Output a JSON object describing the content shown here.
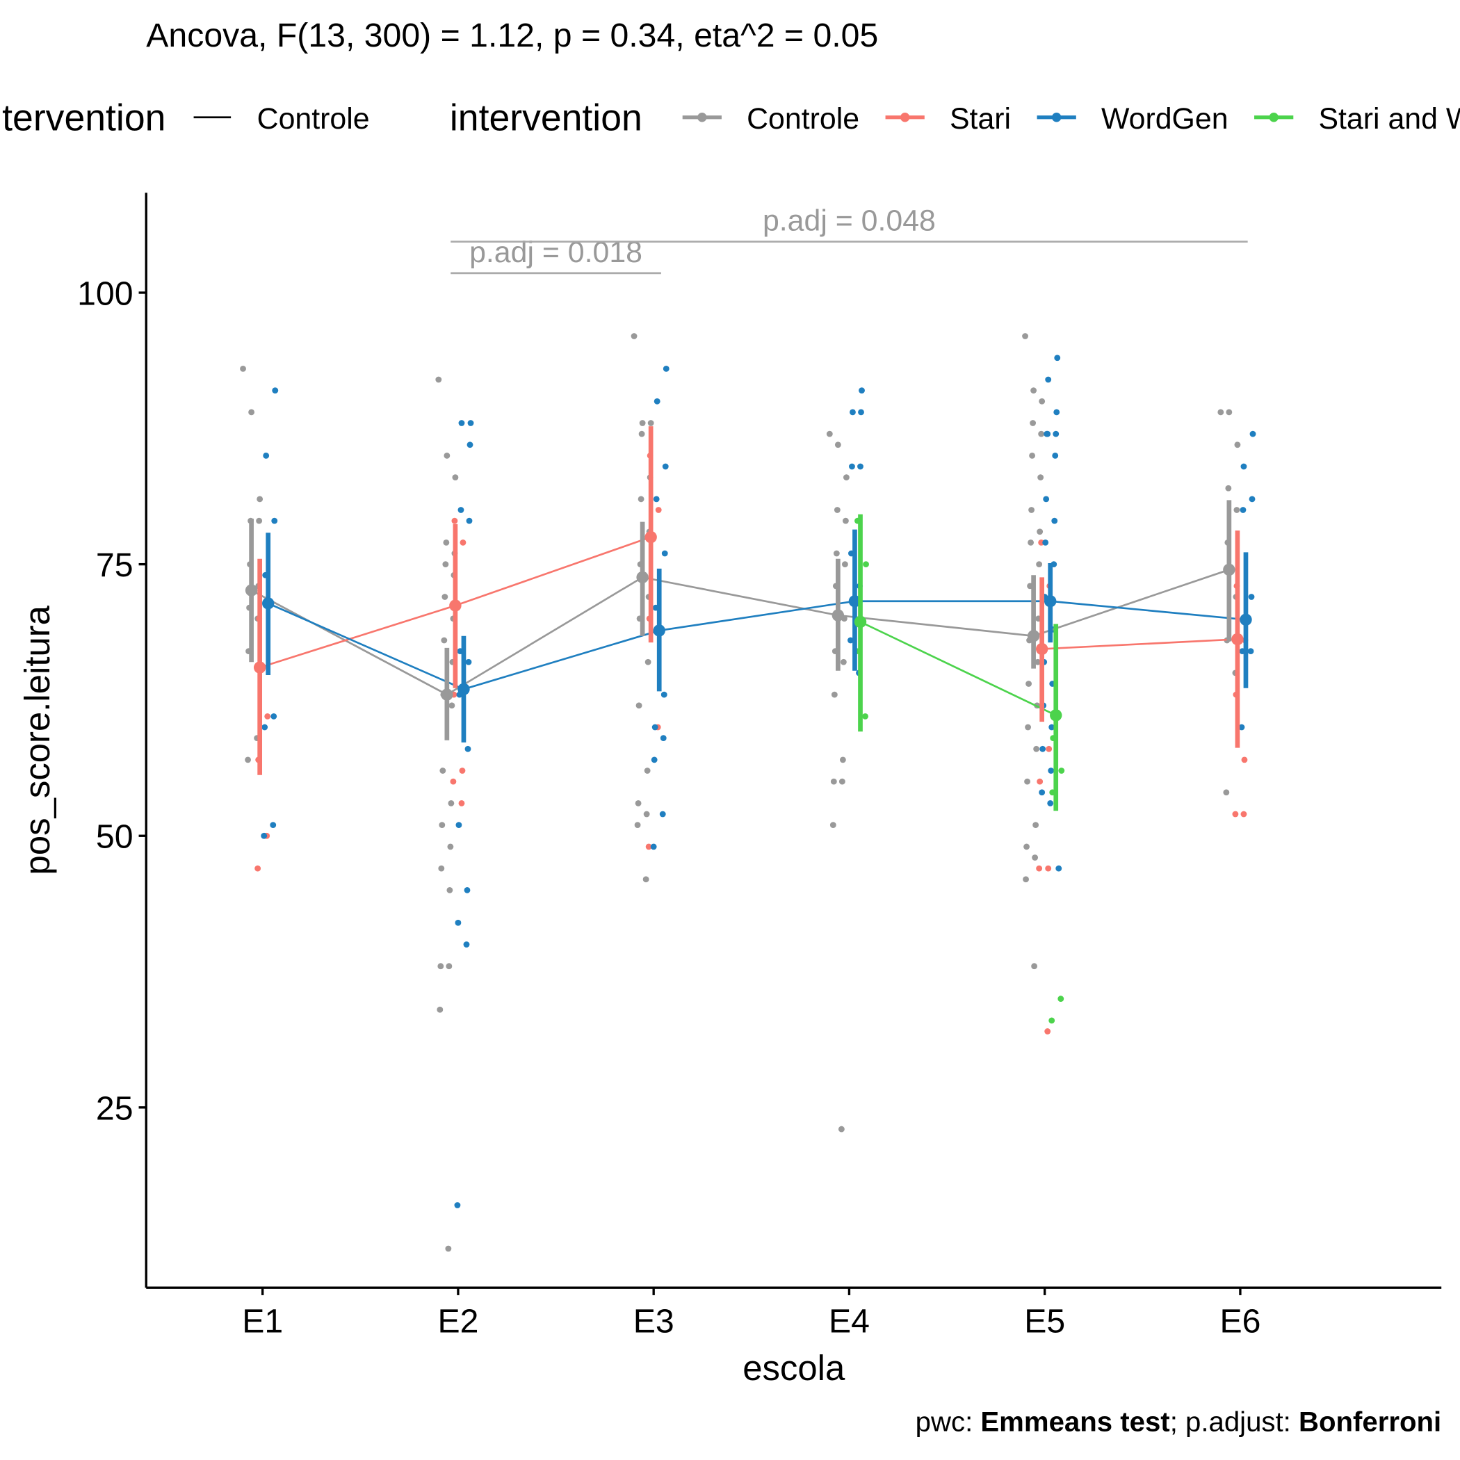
{
  "chart_data": {
    "type": "mean-ci-points",
    "title": "Ancova, F(13, 300) = 1.12, p = 0.34, eta^2 = 0.05",
    "xlabel": "escola",
    "ylabel": "pos_score.leitura",
    "categories": [
      "E1",
      "E2",
      "E3",
      "E4",
      "E5",
      "E6"
    ],
    "ylim": [
      8.4,
      109.2
    ],
    "yticks": [
      25,
      50,
      75,
      100
    ],
    "legend_linetype": {
      "title": "intervention",
      "entries": [
        "Controle"
      ]
    },
    "legend_title": "intervention",
    "series": [
      {
        "name": "Controle",
        "color": "#999999",
        "values": [
          72.6,
          63.0,
          73.8,
          70.3,
          68.4,
          74.5
        ],
        "lower": [
          66.0,
          58.8,
          68.4,
          65.2,
          65.4,
          67.9
        ],
        "upper": [
          79.2,
          67.3,
          78.9,
          75.5,
          74.0,
          80.9
        ],
        "points": [
          [
            93,
            89,
            81,
            79,
            79,
            75,
            73,
            71,
            70,
            67,
            59,
            57
          ],
          [
            92,
            85,
            83,
            77,
            76,
            75,
            74,
            72,
            70,
            68,
            66,
            63,
            62,
            56,
            53,
            51,
            49,
            47,
            45,
            38,
            38,
            34,
            12
          ],
          [
            96,
            88,
            88,
            87,
            83,
            81,
            78,
            75,
            72,
            70,
            66,
            62,
            56,
            53,
            52,
            51,
            46
          ],
          [
            87,
            86,
            83,
            80,
            79,
            76,
            75,
            73,
            70,
            67,
            66,
            63,
            57,
            55,
            55,
            51,
            23
          ],
          [
            96,
            91,
            90,
            88,
            87,
            85,
            83,
            80,
            78,
            77,
            75,
            73,
            70,
            68,
            66,
            64,
            62,
            60,
            58,
            55,
            51,
            49,
            48,
            46,
            38
          ],
          [
            89,
            89,
            86,
            82,
            80,
            77,
            72,
            68,
            65,
            54
          ]
        ]
      },
      {
        "name": "Stari",
        "color": "#F8766D",
        "values": [
          65.5,
          71.2,
          77.5,
          null,
          67.2,
          68.1
        ],
        "lower": [
          55.6,
          63.6,
          67.8,
          null,
          60.5,
          58.1
        ],
        "upper": [
          75.5,
          78.7,
          87.7,
          null,
          73.8,
          78.1
        ],
        "points": [
          [
            70,
            61,
            57,
            50,
            47
          ],
          [
            79,
            77,
            63,
            56,
            55,
            53
          ],
          [
            85,
            80,
            70,
            60,
            49
          ],
          [],
          [
            77,
            73,
            67,
            58,
            55,
            47,
            47,
            32
          ],
          [
            73,
            68,
            63,
            57,
            52,
            52
          ]
        ]
      },
      {
        "name": "WordGen",
        "color": "#1F7FC0",
        "values": [
          71.4,
          63.5,
          68.9,
          71.6,
          71.6,
          69.9
        ],
        "lower": [
          64.8,
          58.6,
          63.3,
          65.2,
          67.8,
          63.6
        ],
        "upper": [
          77.9,
          68.4,
          74.6,
          78.2,
          75.1,
          76.1
        ],
        "points": [
          [
            91,
            85,
            79,
            74,
            61,
            60,
            51,
            50
          ],
          [
            88,
            88,
            86,
            80,
            79,
            67,
            66,
            63,
            58,
            51,
            45,
            42,
            40,
            16
          ],
          [
            93,
            90,
            84,
            81,
            76,
            71,
            63,
            60,
            59,
            57,
            52,
            49
          ],
          [
            91,
            89,
            89,
            84,
            84,
            76,
            73,
            68,
            65
          ],
          [
            94,
            92,
            89,
            87,
            87,
            87,
            85,
            81,
            79,
            77,
            75,
            72,
            69,
            66,
            64,
            62,
            60,
            58,
            56,
            54,
            53,
            47
          ],
          [
            87,
            84,
            81,
            80,
            72,
            67,
            67,
            60
          ]
        ]
      },
      {
        "name": "Stari and WordGen",
        "color": "#4CD34C",
        "values": [
          null,
          null,
          null,
          69.7,
          61.1,
          null
        ],
        "lower": [
          null,
          null,
          null,
          59.6,
          52.3,
          null
        ],
        "upper": [
          null,
          null,
          null,
          79.6,
          69.5,
          null
        ],
        "points": [
          [],
          [],
          [],
          [
            79,
            75,
            67,
            61
          ],
          [
            59,
            56,
            54,
            35,
            33
          ],
          []
        ]
      }
    ],
    "comparisons": [
      {
        "label": "p.adj = 0.018",
        "from": "E2",
        "to": "E3",
        "y": 101.8
      },
      {
        "label": "p.adj = 0.048",
        "from": "E2",
        "to": "E6",
        "y": 104.7
      }
    ],
    "caption": [
      "pwc: ",
      "Emmeans test",
      "; p.adjust: ",
      "Bonferroni"
    ]
  }
}
